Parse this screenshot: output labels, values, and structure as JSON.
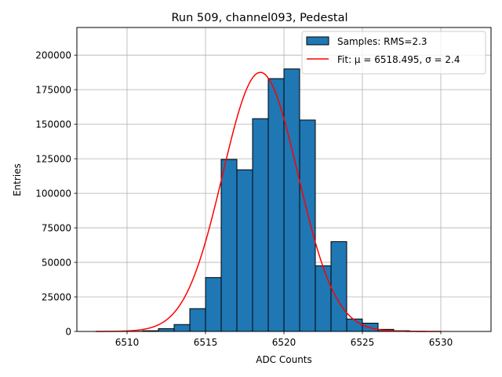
{
  "chart_data": {
    "type": "bar",
    "title": "Run 509, channel093, Pedestal",
    "xlabel": "ADC Counts",
    "ylabel": "Entries",
    "xlim": [
      6506.8,
      6533.2
    ],
    "ylim": [
      0,
      220000
    ],
    "xticks": [
      6510,
      6515,
      6520,
      6525,
      6530
    ],
    "yticks": [
      0,
      25000,
      50000,
      75000,
      100000,
      125000,
      150000,
      175000,
      200000
    ],
    "grid": true,
    "legend_position": "top-right",
    "histogram": {
      "name": "Samples: RMS=2.3",
      "color": "#1f77b4",
      "edgecolor": "#000000",
      "bin_edges": [
        6508,
        6509,
        6510,
        6511,
        6512,
        6513,
        6514,
        6515,
        6516,
        6517,
        6518,
        6519,
        6520,
        6521,
        6522,
        6523,
        6524,
        6525,
        6526,
        6527,
        6528,
        6529,
        6530,
        6531,
        6532
      ],
      "counts": [
        0,
        0,
        100,
        500,
        2000,
        5000,
        16500,
        39000,
        124500,
        117000,
        154000,
        183000,
        190000,
        153000,
        47500,
        65000,
        9000,
        6000,
        1500,
        500,
        100,
        0,
        0,
        0
      ]
    },
    "fit": {
      "name": "Fit: μ = 6518.495, σ = 2.4",
      "color": "#ff0000",
      "mu": 6518.495,
      "sigma": 2.4,
      "amplitude": 187500,
      "x_range": [
        6508,
        6530
      ]
    }
  }
}
